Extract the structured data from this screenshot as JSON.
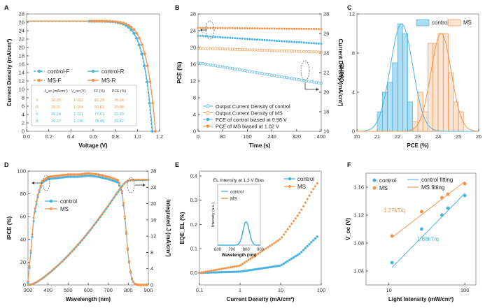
{
  "colors": {
    "control": "#4BB3DF",
    "ms": "#F0954E",
    "axis": "#333333",
    "frame": "#9a9a9a"
  },
  "chart_data": [
    {
      "panel": "A",
      "type": "line",
      "xlabel": "Voltage (V)",
      "ylabel": "Current Density (mA/cm²)",
      "xlim": [
        0,
        1.2
      ],
      "ylim": [
        0,
        28
      ],
      "xticks": [
        "0.0",
        "0.2",
        "0.4",
        "0.6",
        "0.8",
        "1.0",
        "1.2"
      ],
      "yticks": [
        "0",
        "2",
        "4",
        "6",
        "8",
        "10",
        "12",
        "14",
        "16",
        "18",
        "20",
        "22",
        "24",
        "26",
        "28"
      ],
      "legend": [
        "control-F",
        "control-R",
        "MS-F",
        "MS-R"
      ],
      "series": [
        {
          "name": "control-F",
          "color": "control",
          "style": "dashed",
          "jsc": 26.24,
          "voc": 1.131
        },
        {
          "name": "control-R",
          "color": "control",
          "style": "solid",
          "jsc": 26.27,
          "voc": 1.136
        },
        {
          "name": "MS-F",
          "color": "ms",
          "style": "dashed",
          "jsc": 26.29,
          "voc": 1.162
        },
        {
          "name": "MS-R",
          "color": "ms",
          "style": "solid",
          "jsc": 26.31,
          "voc": 1.164
        }
      ],
      "table": {
        "headers": [
          "J_sc (mA/cm²)",
          "V_oc (V)",
          "FF (%)",
          "PCE (%)"
        ],
        "rows": [
          {
            "label": "F",
            "color": "ms",
            "values": [
              "26.29",
              "1.162",
              "82.29",
              "25.14"
            ]
          },
          {
            "label": "R",
            "color": "ms",
            "values": [
              "26.31",
              "1.164",
              "82.82",
              "25.38"
            ]
          },
          {
            "label": "F",
            "color": "control",
            "values": [
              "26.24",
              "1.131",
              "77.61",
              "23.03"
            ]
          },
          {
            "label": "R",
            "color": "control",
            "values": [
              "26.27",
              "1.136",
              "78.49",
              "23.42"
            ]
          }
        ]
      }
    },
    {
      "panel": "B",
      "type": "scatter",
      "xlabel": "Time (s)",
      "ylabel": "PCE (%)",
      "y2label": "Current Density (mA/cm²)",
      "xlim": [
        0,
        400
      ],
      "ylim": [
        0,
        28
      ],
      "y2lim": [
        16,
        28
      ],
      "xticks": [
        "0",
        "80",
        "160",
        "240",
        "320",
        "400"
      ],
      "yticks": [
        "0",
        "4",
        "8",
        "12",
        "16",
        "20",
        "24",
        "28"
      ],
      "y2ticks": [
        "16",
        "18",
        "20",
        "22",
        "24",
        "26",
        "28"
      ],
      "legend": [
        "Output Current Density of control",
        "Output Current Density of MS",
        "PCE of control biased at 0.98 V",
        "PCE of MS biased at 1.02 V"
      ],
      "series": [
        {
          "name": "Output Current Density of control",
          "color": "control",
          "marker": "open",
          "axis": "right",
          "x": [
            0,
            400
          ],
          "y": [
            23.0,
            20.9
          ]
        },
        {
          "name": "Output Current Density of MS",
          "color": "ms",
          "marker": "open",
          "axis": "right",
          "x": [
            0,
            400
          ],
          "y": [
            24.5,
            24.1
          ]
        },
        {
          "name": "PCE of control biased at 0.98 V",
          "color": "control",
          "marker": "filled",
          "axis": "left",
          "x": [
            0,
            400
          ],
          "y": [
            22.8,
            20.9
          ]
        },
        {
          "name": "PCE of MS biased at 1.02 V",
          "color": "ms",
          "marker": "filled",
          "axis": "left",
          "x": [
            0,
            400
          ],
          "y": [
            24.7,
            24.4
          ]
        }
      ]
    },
    {
      "panel": "C",
      "type": "bar",
      "xlabel": "PCE (%)",
      "ylabel": "Counts",
      "xlim": [
        20,
        26
      ],
      "ylim": [
        0,
        12
      ],
      "xticks": [
        "20",
        "21",
        "22",
        "23",
        "24",
        "25",
        "26"
      ],
      "yticks": [
        "0",
        "4",
        "8",
        "12"
      ],
      "legend": [
        "control",
        "MS"
      ],
      "bin_width": 0.25,
      "series": [
        {
          "name": "control",
          "color": "control",
          "bin_centers": [
            21.125,
            21.375,
            21.625,
            21.875,
            22.125,
            22.375,
            22.625,
            22.875
          ],
          "values": [
            2,
            4,
            5,
            7,
            11,
            10,
            3,
            0
          ]
        },
        {
          "name": "MS",
          "color": "ms",
          "bin_centers": [
            22.875,
            23.125,
            23.375,
            23.625,
            23.875,
            24.125,
            24.375,
            24.625,
            24.875,
            25.125
          ],
          "values": [
            1,
            4,
            2,
            9,
            9,
            10,
            10,
            6,
            3,
            2
          ]
        }
      ],
      "fits": [
        {
          "series": "control",
          "mean": 22.2,
          "sd": 0.55
        },
        {
          "series": "MS",
          "mean": 24.15,
          "sd": 0.5
        }
      ]
    },
    {
      "panel": "D",
      "type": "line",
      "xlabel": "Wavelength (nm)",
      "ylabel": "IPCE (%)",
      "y2label": "Integrated J (mA/cm²)",
      "xlim": [
        300,
        900
      ],
      "ylim": [
        0,
        100
      ],
      "y2lim": [
        0,
        28
      ],
      "xticks": [
        "300",
        "400",
        "500",
        "600",
        "700",
        "800",
        "900"
      ],
      "yticks": [
        "0",
        "20",
        "40",
        "60",
        "80",
        "100"
      ],
      "y2ticks": [
        "0",
        "4",
        "8",
        "12",
        "16",
        "20",
        "24",
        "28"
      ],
      "legend": [
        "control",
        "MS"
      ],
      "ipce": {
        "x": [
          300,
          315,
          330,
          350,
          370,
          400,
          450,
          500,
          550,
          600,
          650,
          700,
          750,
          770,
          785,
          800,
          815,
          830,
          850,
          900
        ],
        "control": [
          2,
          30,
          60,
          78,
          90,
          93,
          94,
          95,
          95,
          96,
          95,
          93,
          90,
          80,
          55,
          25,
          6,
          1,
          0,
          0
        ],
        "ms": [
          3,
          32,
          63,
          80,
          91,
          95,
          96,
          97,
          97,
          98,
          97,
          95,
          92,
          82,
          57,
          26,
          7,
          1,
          0,
          0
        ]
      },
      "integrated": {
        "control_end": 25.8,
        "ms_end": 25.9
      }
    },
    {
      "panel": "E",
      "type": "scatter",
      "xlabel": "Current Density (mA/cm²)",
      "ylabel": "EQE_EL (%)",
      "xscale": "log",
      "xlim": [
        0.1,
        100
      ],
      "ylim": [
        -0.05,
        0.42
      ],
      "xticks": [
        "0.1",
        "1",
        "10",
        "100"
      ],
      "yticks": [
        "0.0",
        "0.1",
        "0.2",
        "0.3",
        "0.4"
      ],
      "legend": [
        "control",
        "MS"
      ],
      "series": [
        {
          "name": "control",
          "color": "control",
          "x": [
            0.1,
            1,
            10,
            30,
            60,
            80
          ],
          "y": [
            0.0,
            0.005,
            0.03,
            0.08,
            0.13,
            0.15
          ]
        },
        {
          "name": "MS",
          "color": "ms",
          "x": [
            0.1,
            1,
            10,
            30,
            60,
            80
          ],
          "y": [
            0.0,
            0.03,
            0.14,
            0.25,
            0.34,
            0.37
          ]
        }
      ],
      "inset": {
        "title": "EL Intensity at 1.3 V Bias",
        "xlabel": "Wavelength (nm)",
        "ylabel": "Intensity (a.u.)",
        "xlim": [
          600,
          900
        ],
        "xticks": [
          "600",
          "700",
          "800",
          "900"
        ],
        "legend": [
          "control",
          "MS"
        ],
        "peaks": [
          {
            "series": "control",
            "center": 800,
            "height": 0.2
          },
          {
            "series": "MS",
            "center": 800,
            "height": 0.48
          }
        ]
      }
    },
    {
      "panel": "F",
      "type": "scatter",
      "xlabel": "Light Intensity (mW/cm²)",
      "ylabel": "V_oc (V)",
      "xscale": "log",
      "xlim": [
        5,
        140
      ],
      "ylim": [
        1.02,
        1.18
      ],
      "xticks": [
        "10",
        "100"
      ],
      "yticks": [
        "1.04",
        "1.08",
        "1.12",
        "1.16"
      ],
      "legend": [
        "control",
        "MS",
        "control fitting",
        "MS fitting"
      ],
      "annotations": [
        "1.27kT/q",
        "1.68kT/q"
      ],
      "series": [
        {
          "name": "control",
          "color": "control",
          "x": [
            11,
            27,
            50,
            60,
            100
          ],
          "y": [
            1.052,
            1.1,
            1.12,
            1.13,
            1.148
          ]
        },
        {
          "name": "MS",
          "color": "ms",
          "x": [
            11,
            27,
            50,
            60,
            100
          ],
          "y": [
            1.09,
            1.125,
            1.145,
            1.15,
            1.165
          ]
        }
      ],
      "fits": [
        {
          "name": "control fitting",
          "color": "control",
          "x": [
            11,
            100
          ],
          "y": [
            1.045,
            1.151
          ]
        },
        {
          "name": "MS fitting",
          "color": "ms",
          "x": [
            11,
            100
          ],
          "y": [
            1.088,
            1.168
          ]
        }
      ]
    }
  ]
}
